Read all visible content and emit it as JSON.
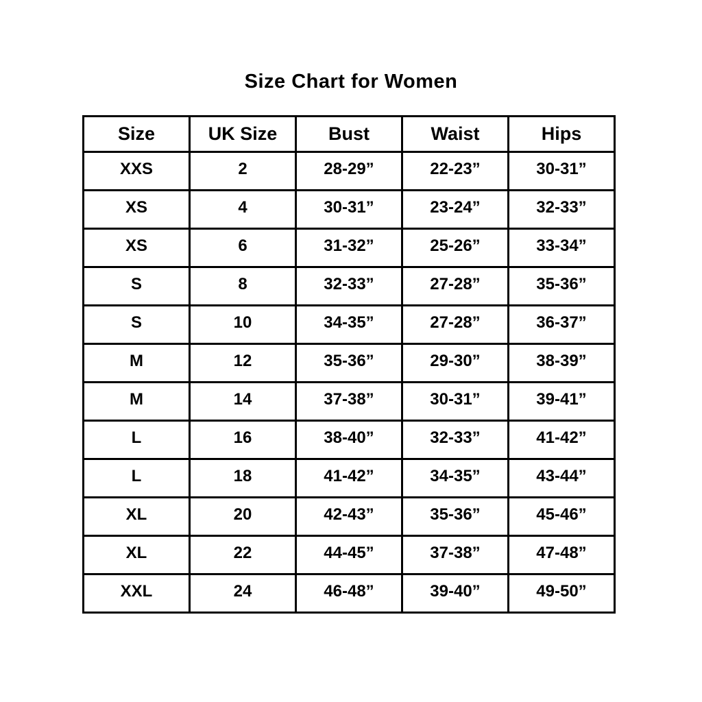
{
  "page": {
    "title": "Size Chart for Women"
  },
  "table": {
    "headers": [
      "Size",
      "UK Size",
      "Bust",
      "Waist",
      "Hips"
    ],
    "rows": [
      [
        "XXS",
        "2",
        "28-29”",
        "22-23”",
        "30-31”"
      ],
      [
        "XS",
        "4",
        "30-31”",
        "23-24”",
        "32-33”"
      ],
      [
        "XS",
        "6",
        "31-32”",
        "25-26”",
        "33-34”"
      ],
      [
        "S",
        "8",
        "32-33”",
        "27-28”",
        "35-36”"
      ],
      [
        "S",
        "10",
        "34-35”",
        "27-28”",
        "36-37”"
      ],
      [
        "M",
        "12",
        "35-36”",
        "29-30”",
        "38-39”"
      ],
      [
        "M",
        "14",
        "37-38”",
        "30-31”",
        "39-41”"
      ],
      [
        "L",
        "16",
        "38-40”",
        "32-33”",
        "41-42”"
      ],
      [
        "L",
        "18",
        "41-42”",
        "34-35”",
        "43-44”"
      ],
      [
        "XL",
        "20",
        "42-43”",
        "35-36”",
        "45-46”"
      ],
      [
        "XL",
        "22",
        "44-45”",
        "37-38”",
        "47-48”"
      ],
      [
        "XXL",
        "24",
        "46-48”",
        "39-40”",
        "49-50”"
      ]
    ]
  },
  "colors": {
    "text": "#000000",
    "border": "#000000",
    "background": "#ffffff"
  },
  "chart_data": {
    "type": "table",
    "title": "Size Chart for Women",
    "columns": [
      "Size",
      "UK Size",
      "Bust",
      "Waist",
      "Hips"
    ],
    "rows": [
      [
        "XXS",
        "2",
        "28-29”",
        "22-23”",
        "30-31”"
      ],
      [
        "XS",
        "4",
        "30-31”",
        "23-24”",
        "32-33”"
      ],
      [
        "XS",
        "6",
        "31-32”",
        "25-26”",
        "33-34”"
      ],
      [
        "S",
        "8",
        "32-33”",
        "27-28”",
        "35-36”"
      ],
      [
        "S",
        "10",
        "34-35”",
        "27-28”",
        "36-37”"
      ],
      [
        "M",
        "12",
        "35-36”",
        "29-30”",
        "38-39”"
      ],
      [
        "M",
        "14",
        "37-38”",
        "30-31”",
        "39-41”"
      ],
      [
        "L",
        "16",
        "38-40”",
        "32-33”",
        "41-42”"
      ],
      [
        "L",
        "18",
        "41-42”",
        "34-35”",
        "43-44”"
      ],
      [
        "XL",
        "20",
        "42-43”",
        "35-36”",
        "45-46”"
      ],
      [
        "XL",
        "22",
        "44-45”",
        "37-38”",
        "47-48”"
      ],
      [
        "XXL",
        "24",
        "46-48”",
        "39-40”",
        "49-50”"
      ]
    ],
    "layout": {
      "grid": true,
      "header_row": true,
      "units": "inches"
    }
  }
}
